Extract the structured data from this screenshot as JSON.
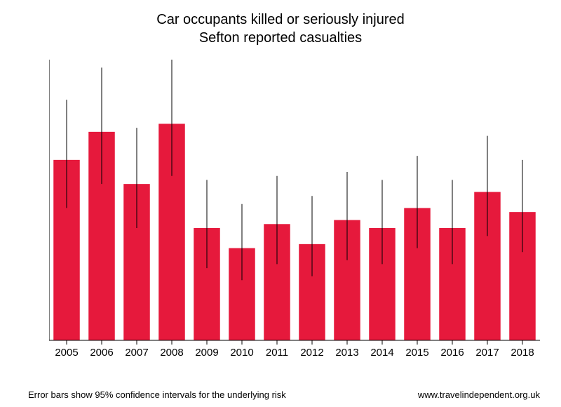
{
  "chart": {
    "type": "bar",
    "title_line1": "Car occupants killed or seriously injured",
    "title_line2": "Sefton reported casualties",
    "title_fontsize": 20,
    "background_color": "#ffffff",
    "bar_color": "#e6193c",
    "error_bar_color": "#000000",
    "axis_color": "#000000",
    "tick_fontsize": 15,
    "ylim": [
      0,
      70
    ],
    "ytick_step": 10,
    "yticks": [
      0,
      10,
      20,
      30,
      40,
      50,
      60,
      70
    ],
    "categories": [
      "2005",
      "2006",
      "2007",
      "2008",
      "2009",
      "2010",
      "2011",
      "2012",
      "2013",
      "2014",
      "2015",
      "2016",
      "2017",
      "2018"
    ],
    "values": [
      45,
      52,
      39,
      54,
      28,
      23,
      29,
      24,
      30,
      28,
      33,
      28,
      37,
      32
    ],
    "err_low": [
      33,
      39,
      28,
      41,
      18,
      15,
      19,
      16,
      20,
      19,
      23,
      19,
      26,
      22
    ],
    "err_high": [
      60,
      68,
      53,
      70,
      40,
      34,
      41,
      36,
      42,
      40,
      46,
      40,
      51,
      45
    ],
    "bar_width_ratio": 0.75,
    "footer_left": "Error bars show 95% confidence intervals for the underlying risk",
    "footer_right": "www.travelindependent.org.uk",
    "footer_fontsize": 13
  }
}
